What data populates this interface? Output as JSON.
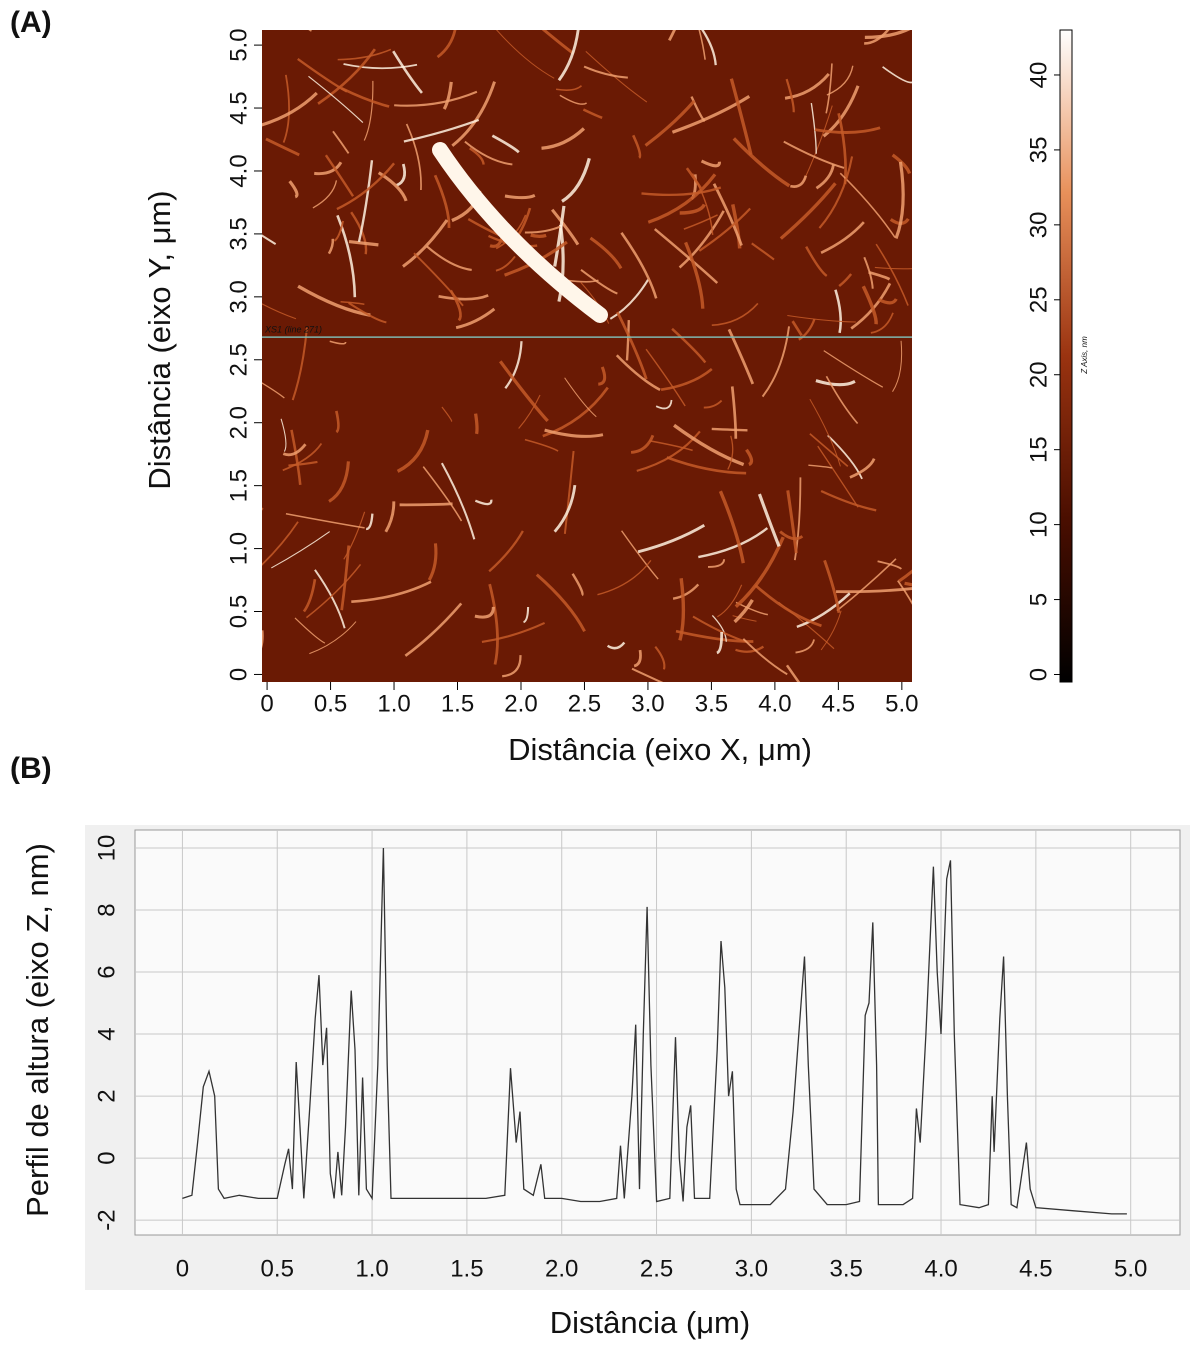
{
  "chart_data": [
    {
      "type": "image",
      "panel": "(A)",
      "xlabel": "Distância (eixo X, μm)",
      "ylabel": "Distância (eixo Y, μm)",
      "xlim": [
        -0.04,
        5.08
      ],
      "ylim": [
        -0.06,
        5.12
      ],
      "xticks": [
        0,
        0.5,
        {
          "value": 1,
          "label": "1.0"
        },
        1.5,
        {
          "value": 2,
          "label": "2.0"
        },
        2.5,
        {
          "value": 3,
          "label": "3.0"
        },
        3.5,
        {
          "value": 4,
          "label": "4.0"
        },
        4.5,
        {
          "value": 5,
          "label": "5.0"
        }
      ],
      "yticks": [
        0,
        0.5,
        {
          "value": 1,
          "label": "1.0"
        },
        1.5,
        {
          "value": 2,
          "label": "2.0"
        },
        2.5,
        {
          "value": 3,
          "label": "3.0"
        },
        3.5,
        {
          "value": 4,
          "label": "4.0"
        },
        4.5,
        {
          "value": 5,
          "label": "5.0"
        }
      ],
      "annotation": {
        "text": "XS1 (line 271)",
        "y": 2.68
      },
      "colorbar": {
        "label": "Z Axis, nm",
        "lim": [
          -0.5,
          43
        ],
        "ticks": [
          0,
          5,
          10,
          15,
          20,
          25,
          30,
          35,
          40
        ]
      }
    },
    {
      "type": "line",
      "panel": "(B)",
      "xlabel": "Distância (μm)",
      "ylabel": "Perfil de altura (eixo Z, nm)",
      "xlim": [
        -0.25,
        5.26
      ],
      "ylim": [
        -2.48,
        10.58
      ],
      "grid": true,
      "color": "#333333",
      "xticks": [
        0,
        0.5,
        {
          "value": 1,
          "label": "1.0"
        },
        1.5,
        {
          "value": 2,
          "label": "2.0"
        },
        2.5,
        {
          "value": 3,
          "label": "3.0"
        },
        3.5,
        {
          "value": 4,
          "label": "4.0"
        },
        4.5,
        {
          "value": 5,
          "label": "5.0"
        }
      ],
      "yticks": [
        -2,
        0,
        2,
        4,
        6,
        8,
        10
      ],
      "x": [
        0,
        0.05,
        0.08,
        0.11,
        0.14,
        0.17,
        0.19,
        0.22,
        0.3,
        0.4,
        0.5,
        0.54,
        0.56,
        0.58,
        0.6,
        0.62,
        0.64,
        0.67,
        0.7,
        0.72,
        0.74,
        0.76,
        0.78,
        0.8,
        0.82,
        0.84,
        0.86,
        0.89,
        0.91,
        0.93,
        0.95,
        0.97,
        1.0,
        1.03,
        1.06,
        1.08,
        1.1,
        1.2,
        1.4,
        1.6,
        1.7,
        1.73,
        1.76,
        1.78,
        1.8,
        1.85,
        1.89,
        1.91,
        2.0,
        2.1,
        2.2,
        2.29,
        2.31,
        2.33,
        2.37,
        2.39,
        2.41,
        2.43,
        2.45,
        2.47,
        2.5,
        2.57,
        2.6,
        2.62,
        2.64,
        2.66,
        2.68,
        2.7,
        2.78,
        2.82,
        2.84,
        2.86,
        2.88,
        2.9,
        2.92,
        2.94,
        3.1,
        3.18,
        3.22,
        3.25,
        3.28,
        3.3,
        3.33,
        3.4,
        3.5,
        3.57,
        3.6,
        3.62,
        3.64,
        3.66,
        3.67,
        3.8,
        3.85,
        3.87,
        3.89,
        3.92,
        3.96,
        3.98,
        4.0,
        4.03,
        4.05,
        4.07,
        4.1,
        4.2,
        4.25,
        4.27,
        4.28,
        4.31,
        4.33,
        4.35,
        4.37,
        4.4,
        4.45,
        4.47,
        4.5,
        4.7,
        4.9,
        4.98
      ],
      "values": [
        -1.3,
        -1.2,
        0.5,
        2.3,
        2.8,
        2.0,
        -1.0,
        -1.3,
        -1.2,
        -1.3,
        -1.3,
        -0.2,
        0.3,
        -1.0,
        3.1,
        1.0,
        -1.3,
        1.5,
        4.5,
        5.9,
        3.0,
        4.2,
        -0.5,
        -1.3,
        0.2,
        -1.2,
        1.0,
        5.4,
        3.5,
        -1.2,
        2.6,
        -1.0,
        -1.3,
        3.0,
        10.0,
        3.0,
        -1.3,
        -1.3,
        -1.3,
        -1.3,
        -1.2,
        2.9,
        0.5,
        1.5,
        -1.0,
        -1.2,
        -0.2,
        -1.3,
        -1.3,
        -1.4,
        -1.4,
        -1.3,
        0.4,
        -1.3,
        2.0,
        4.3,
        -1.0,
        4.0,
        8.1,
        3.0,
        -1.4,
        -1.3,
        3.9,
        0.0,
        -1.4,
        1.0,
        1.7,
        -1.3,
        -1.3,
        3.5,
        7.0,
        5.5,
        2.0,
        2.8,
        -1.0,
        -1.5,
        -1.5,
        -1.0,
        1.5,
        4.0,
        6.5,
        3.0,
        -1.0,
        -1.5,
        -1.5,
        -1.4,
        4.6,
        5.0,
        7.6,
        3.0,
        -1.5,
        -1.5,
        -1.3,
        1.6,
        0.5,
        4.0,
        9.4,
        6.0,
        4.0,
        9.0,
        9.6,
        4.0,
        -1.5,
        -1.6,
        -1.5,
        2.0,
        0.2,
        4.5,
        6.5,
        2.0,
        -1.5,
        -1.6,
        0.5,
        -1.0,
        -1.6,
        -1.7,
        -1.8,
        -1.8
      ]
    }
  ]
}
